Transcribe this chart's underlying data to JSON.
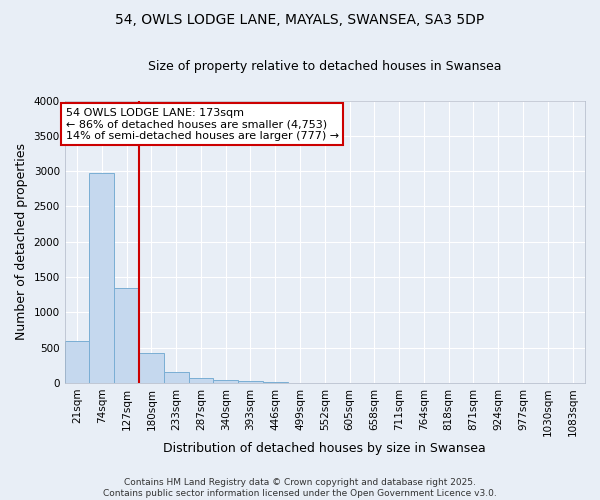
{
  "title_line1": "54, OWLS LODGE LANE, MAYALS, SWANSEA, SA3 5DP",
  "title_line2": "Size of property relative to detached houses in Swansea",
  "xlabel": "Distribution of detached houses by size in Swansea",
  "ylabel": "Number of detached properties",
  "bar_color": "#c5d8ee",
  "bar_edge_color": "#7aaed4",
  "background_color": "#e8eef6",
  "grid_color": "#ffffff",
  "categories": [
    "21sqm",
    "74sqm",
    "127sqm",
    "180sqm",
    "233sqm",
    "287sqm",
    "340sqm",
    "393sqm",
    "446sqm",
    "499sqm",
    "552sqm",
    "605sqm",
    "658sqm",
    "711sqm",
    "764sqm",
    "818sqm",
    "871sqm",
    "924sqm",
    "977sqm",
    "1030sqm",
    "1083sqm"
  ],
  "values": [
    590,
    2970,
    1340,
    430,
    155,
    75,
    45,
    30,
    20,
    0,
    0,
    0,
    0,
    0,
    0,
    0,
    0,
    0,
    0,
    0,
    0
  ],
  "ylim": [
    0,
    4000
  ],
  "yticks": [
    0,
    500,
    1000,
    1500,
    2000,
    2500,
    3000,
    3500,
    4000
  ],
  "property_line_x": 2.5,
  "annotation_text": "54 OWLS LODGE LANE: 173sqm\n← 86% of detached houses are smaller (4,753)\n14% of semi-detached houses are larger (777) →",
  "annotation_box_color": "#ffffff",
  "annotation_box_edge_color": "#cc0000",
  "vline_color": "#cc0000",
  "footer_line1": "Contains HM Land Registry data © Crown copyright and database right 2025.",
  "footer_line2": "Contains public sector information licensed under the Open Government Licence v3.0.",
  "title_fontsize": 10,
  "subtitle_fontsize": 9,
  "axis_label_fontsize": 9,
  "tick_fontsize": 7.5,
  "annotation_fontsize": 8,
  "footer_fontsize": 6.5
}
